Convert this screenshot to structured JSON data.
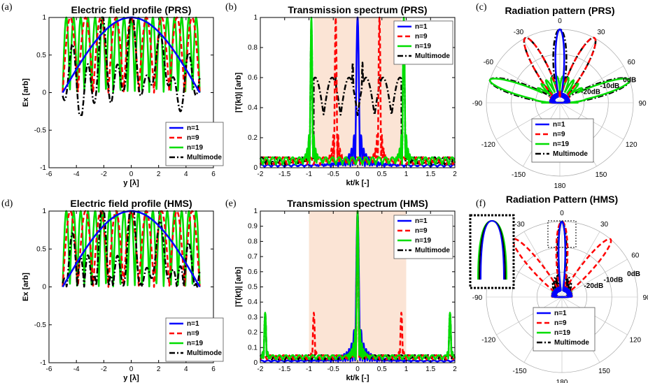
{
  "panel_labels": {
    "a": "(a)",
    "b": "(b)",
    "c": "(c)",
    "d": "(d)",
    "e": "(e)",
    "f": "(f)"
  },
  "legend": [
    "n=1",
    "n=9",
    "n=19",
    "Multimode"
  ],
  "colors": {
    "n1": "#0000ff",
    "n9": "#ff0000",
    "n19": "#00dd00",
    "multimode": "#000000",
    "band": "#fbe4d5"
  },
  "chart_data": [
    {
      "id": "a",
      "type": "line",
      "title": "Electric field profile (PRS)",
      "xlabel": "y [λ]",
      "ylabel": "Ex [arb]",
      "xlim": [
        -6,
        6
      ],
      "ylim": [
        -1,
        1
      ],
      "xticks": [
        "-6",
        "-4",
        "-2",
        "0",
        "2",
        "4",
        "6"
      ],
      "yticks": [
        "-1",
        "-0.5",
        "0",
        "0.5",
        "1"
      ],
      "series": [
        {
          "name": "n=1",
          "values": "|cos(πy/10)| envelope, 0 at y=±5, 1 at y=0"
        },
        {
          "name": "n=9",
          "values": "|cos(9πy/10)|, 9 lobes between 0 and 1"
        },
        {
          "name": "n=19",
          "values": "|cos(19πy/10)|, 19 lobes between 0 and 1"
        },
        {
          "name": "Multimode",
          "values": "superposition, normalized, spans ~-0.25 to 1"
        }
      ]
    },
    {
      "id": "b",
      "type": "line",
      "title": "Transmission spectrum (PRS)",
      "xlabel": "kt/k [-]",
      "ylabel": "|T(kt)| [arb]",
      "xlim": [
        -2,
        2
      ],
      "ylim": [
        0,
        1
      ],
      "band": [
        -0.9,
        0.9
      ],
      "xticks": [
        "-2",
        "-1.5",
        "-1",
        "-0.5",
        "0",
        "0.5",
        "1",
        "1.5",
        "2"
      ],
      "yticks": [
        "0",
        "0.2",
        "0.4",
        "0.6",
        "0.8",
        "1"
      ],
      "series": [
        {
          "name": "n=1",
          "peaks": [
            [
              0,
              1.0
            ]
          ]
        },
        {
          "name": "n=9",
          "peaks": [
            [
              -0.45,
              1.0
            ],
            [
              0.45,
              1.0
            ]
          ]
        },
        {
          "name": "n=19",
          "peaks": [
            [
              -0.95,
              1.0
            ],
            [
              0.95,
              1.0
            ]
          ]
        },
        {
          "name": "Multimode",
          "peaks": [
            [
              -0.95,
              0.95
            ],
            [
              -0.45,
              0.6
            ],
            [
              -0.1,
              0.7
            ],
            [
              0.1,
              0.7
            ],
            [
              0.45,
              0.6
            ],
            [
              0.95,
              0.95
            ]
          ]
        }
      ]
    },
    {
      "id": "c",
      "type": "polar",
      "title": "Radiation pattern (PRS)",
      "angle_ticks": [
        "0",
        "30",
        "60",
        "90",
        "120",
        "150",
        "180",
        "-150",
        "-120",
        "-90",
        "-60",
        "-30"
      ],
      "radial_ticks": [
        "0dB",
        "-10dB",
        "-20dB"
      ],
      "series": [
        {
          "name": "n=1",
          "lobes_deg": [
            0
          ],
          "width_deg": 8
        },
        {
          "name": "n=9",
          "lobes_deg": [
            -28,
            28
          ],
          "width_deg": 12
        },
        {
          "name": "n=19",
          "lobes_deg": [
            -72,
            72
          ],
          "width_deg": 10
        },
        {
          "name": "Multimode",
          "lobes_deg": [
            -72,
            -28,
            0,
            28,
            72
          ],
          "width_deg": 12
        }
      ]
    },
    {
      "id": "d",
      "type": "line",
      "title": "Electric field profile (HMS)",
      "xlabel": "y [λ]",
      "ylabel": "Ex [arb]",
      "xlim": [
        -6,
        6
      ],
      "ylim": [
        -1,
        1
      ],
      "xticks": [
        "-6",
        "-4",
        "-2",
        "0",
        "2",
        "4",
        "6"
      ],
      "yticks": [
        "-1",
        "-0.5",
        "0",
        "0.5",
        "1"
      ],
      "series": [
        {
          "name": "n=1",
          "values": "|cos(πy/10)|"
        },
        {
          "name": "n=9",
          "values": "|cos(9πy/10)|"
        },
        {
          "name": "n=19",
          "values": "|cos(19πy/10)|"
        },
        {
          "name": "Multimode",
          "values": "superposition between 0 and 1"
        }
      ]
    },
    {
      "id": "e",
      "type": "line",
      "title": "Transmission spectrum (HMS)",
      "xlabel": "kt/k [-]",
      "ylabel": "|T(kt)| [arb]",
      "xlim": [
        -2,
        2
      ],
      "ylim": [
        0,
        1
      ],
      "band": [
        -1,
        1
      ],
      "xticks": [
        "-2",
        "-1.5",
        "-1",
        "-0.5",
        "0",
        "0.5",
        "1",
        "1.5",
        "2"
      ],
      "yticks": [
        "0",
        "0.1",
        "0.2",
        "0.3",
        "0.4",
        "0.5",
        "0.6",
        "0.7",
        "0.8",
        "0.9",
        "1"
      ],
      "series": [
        {
          "name": "n=1",
          "peaks": [
            [
              0,
              1.0
            ]
          ]
        },
        {
          "name": "n=9",
          "peaks": [
            [
              0,
              1.0
            ],
            [
              -0.9,
              0.33
            ],
            [
              0.9,
              0.33
            ]
          ]
        },
        {
          "name": "n=19",
          "peaks": [
            [
              0,
              1.0
            ],
            [
              -1.9,
              0.33
            ],
            [
              1.9,
              0.33
            ]
          ]
        },
        {
          "name": "Multimode",
          "peaks": [
            [
              0,
              1.0
            ],
            [
              -1.9,
              0.33
            ],
            [
              1.9,
              0.33
            ]
          ]
        }
      ]
    },
    {
      "id": "f",
      "type": "polar",
      "title": "Radiation Pattern (HMS)",
      "angle_ticks": [
        "0",
        "30",
        "60",
        "90",
        "120",
        "150",
        "180",
        "-150",
        "-120",
        "-90",
        "-60",
        "-30"
      ],
      "radial_ticks": [
        "0dB",
        "-10dB",
        "-20dB"
      ],
      "series": [
        {
          "name": "n=1",
          "lobes_deg": [
            0
          ],
          "width_deg": 6
        },
        {
          "name": "n=9",
          "lobes_deg": [
            -40,
            0,
            40
          ],
          "width_deg": 10
        },
        {
          "name": "n=19",
          "lobes_deg": [
            0
          ],
          "width_deg": 6
        },
        {
          "name": "Multimode",
          "lobes_deg": [
            0
          ],
          "width_deg": 8
        }
      ]
    }
  ]
}
